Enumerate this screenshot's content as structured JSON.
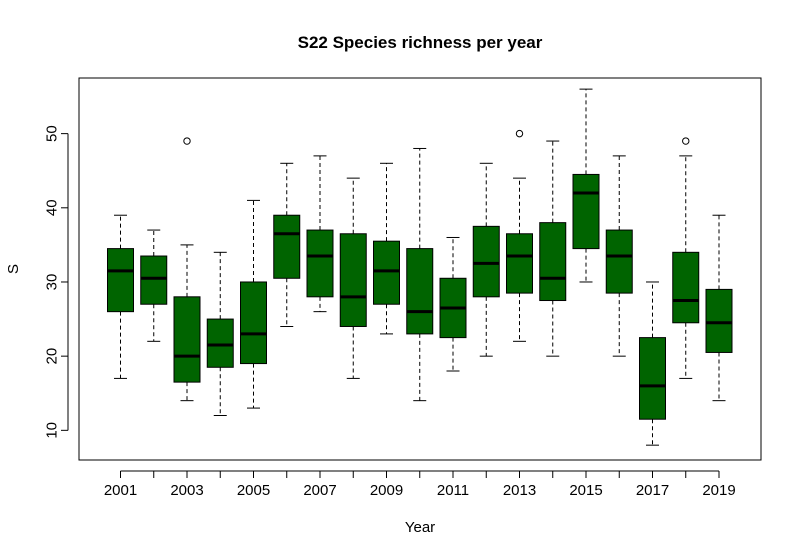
{
  "chart_data": {
    "type": "boxplot",
    "title": "S22 Species richness per year",
    "xlabel": "Year",
    "ylabel": "S",
    "ylim": [
      6,
      57.5
    ],
    "y_ticks": [
      10,
      20,
      30,
      40,
      50
    ],
    "x_tick_labels_shown": [
      "2001",
      "2003",
      "2005",
      "2007",
      "2009",
      "2011",
      "2013",
      "2015",
      "2017",
      "2019"
    ],
    "grid": false,
    "legend": "none",
    "box_color": "#006400",
    "categories": [
      "2001",
      "2002",
      "2003",
      "2004",
      "2005",
      "2006",
      "2007",
      "2008",
      "2009",
      "2010",
      "2011",
      "2012",
      "2013",
      "2014",
      "2015",
      "2016",
      "2017",
      "2018",
      "2019"
    ],
    "boxes": [
      {
        "year": "2001",
        "min": 17,
        "q1": 26,
        "median": 31.5,
        "q3": 34.5,
        "max": 39,
        "outliers": []
      },
      {
        "year": "2002",
        "min": 22,
        "q1": 27,
        "median": 30.5,
        "q3": 33.5,
        "max": 37,
        "outliers": []
      },
      {
        "year": "2003",
        "min": 14,
        "q1": 16.5,
        "median": 20,
        "q3": 28,
        "max": 35,
        "outliers": [
          49
        ]
      },
      {
        "year": "2004",
        "min": 12,
        "q1": 18.5,
        "median": 21.5,
        "q3": 25,
        "max": 34,
        "outliers": []
      },
      {
        "year": "2005",
        "min": 13,
        "q1": 19,
        "median": 23,
        "q3": 30,
        "max": 41,
        "outliers": []
      },
      {
        "year": "2006",
        "min": 24,
        "q1": 30.5,
        "median": 36.5,
        "q3": 39,
        "max": 46,
        "outliers": []
      },
      {
        "year": "2007",
        "min": 26,
        "q1": 28,
        "median": 33.5,
        "q3": 37,
        "max": 47,
        "outliers": []
      },
      {
        "year": "2008",
        "min": 17,
        "q1": 24,
        "median": 28,
        "q3": 36.5,
        "max": 44,
        "outliers": []
      },
      {
        "year": "2009",
        "min": 23,
        "q1": 27,
        "median": 31.5,
        "q3": 35.5,
        "max": 46,
        "outliers": []
      },
      {
        "year": "2010",
        "min": 14,
        "q1": 23,
        "median": 26,
        "q3": 34.5,
        "max": 48,
        "outliers": []
      },
      {
        "year": "2011",
        "min": 18,
        "q1": 22.5,
        "median": 26.5,
        "q3": 30.5,
        "max": 36,
        "outliers": []
      },
      {
        "year": "2012",
        "min": 20,
        "q1": 28,
        "median": 32.5,
        "q3": 37.5,
        "max": 46,
        "outliers": []
      },
      {
        "year": "2013",
        "min": 22,
        "q1": 28.5,
        "median": 33.5,
        "q3": 36.5,
        "max": 44,
        "outliers": [
          50
        ]
      },
      {
        "year": "2014",
        "min": 20,
        "q1": 27.5,
        "median": 30.5,
        "q3": 38,
        "max": 49,
        "outliers": []
      },
      {
        "year": "2015",
        "min": 30,
        "q1": 34.5,
        "median": 42,
        "q3": 44.5,
        "max": 56,
        "outliers": []
      },
      {
        "year": "2016",
        "min": 20,
        "q1": 28.5,
        "median": 33.5,
        "q3": 37,
        "max": 47,
        "outliers": []
      },
      {
        "year": "2017",
        "min": 8,
        "q1": 11.5,
        "median": 16,
        "q3": 22.5,
        "max": 30,
        "outliers": []
      },
      {
        "year": "2018",
        "min": 17,
        "q1": 24.5,
        "median": 27.5,
        "q3": 34,
        "max": 47,
        "outliers": [
          49
        ]
      },
      {
        "year": "2019",
        "min": 14,
        "q1": 20.5,
        "median": 24.5,
        "q3": 29,
        "max": 39,
        "outliers": []
      }
    ]
  }
}
